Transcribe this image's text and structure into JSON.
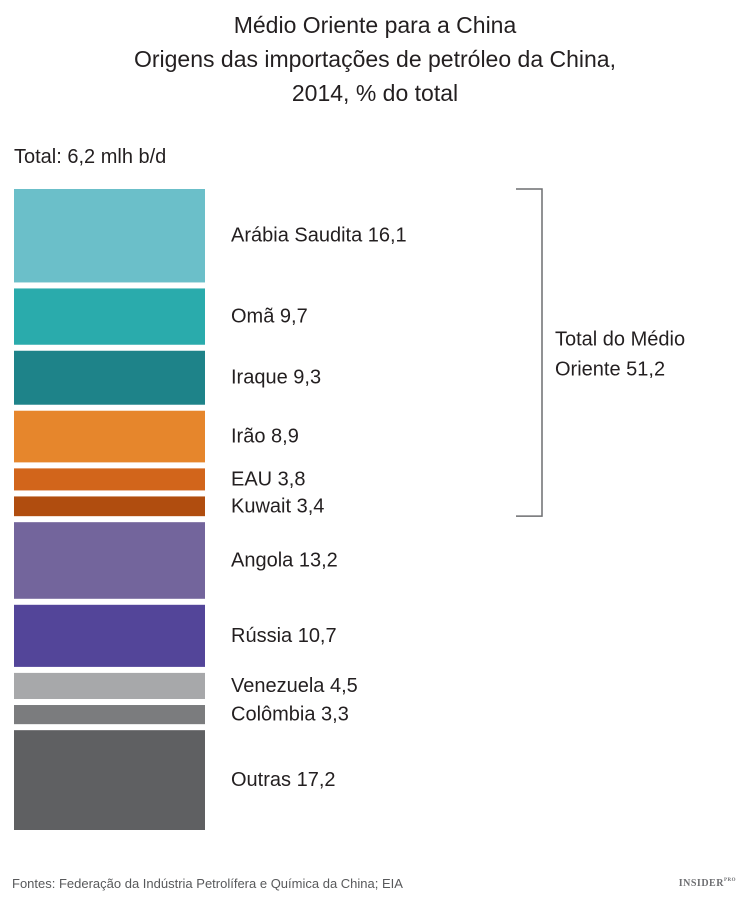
{
  "chart_data": {
    "type": "bar",
    "title_lines": [
      "Médio Oriente para a China",
      "Origens das importações de petróleo da China,",
      "2014, % do total"
    ],
    "subtitle": "Total: 6,2 mlh b/d",
    "categories": [
      "Arábia Saudita",
      "Omã",
      "Iraque",
      "Irão",
      "EAU",
      "Kuwait",
      "Angola",
      "Rússia",
      "Venezuela",
      "Colômbia",
      "Outras"
    ],
    "values": [
      16.1,
      9.7,
      9.3,
      8.9,
      3.8,
      3.4,
      13.2,
      10.7,
      4.5,
      3.3,
      17.2
    ],
    "labels": [
      "Arábia Saudita 16,1",
      "Omã 9,7",
      "Iraque 9,3",
      "Irão 8,9",
      "EAU 3,8",
      "Kuwait 3,4",
      "Angola 13,2",
      "Rússia 10,7",
      "Venezuela 4,5",
      "Colômbia 3,3",
      "Outras 17,2"
    ],
    "colors": [
      "#6bbfc9",
      "#2aabac",
      "#1e8389",
      "#e6862c",
      "#d2651b",
      "#b04d0f",
      "#73659c",
      "#534599",
      "#a7a8aa",
      "#7b7c7e",
      "#5f6062"
    ],
    "group": {
      "label_lines": [
        "Total do Médio",
        "Oriente 51,2"
      ],
      "value": 51.2,
      "first_index": 0,
      "last_index": 5
    },
    "orientation": "stacked-vertical",
    "legend": "none",
    "grid": false
  },
  "source": "Fontes: Federação da Indústria Petrolífera e Química da China; EIA",
  "brand": "INSIDER",
  "brand_mark": "PRO"
}
